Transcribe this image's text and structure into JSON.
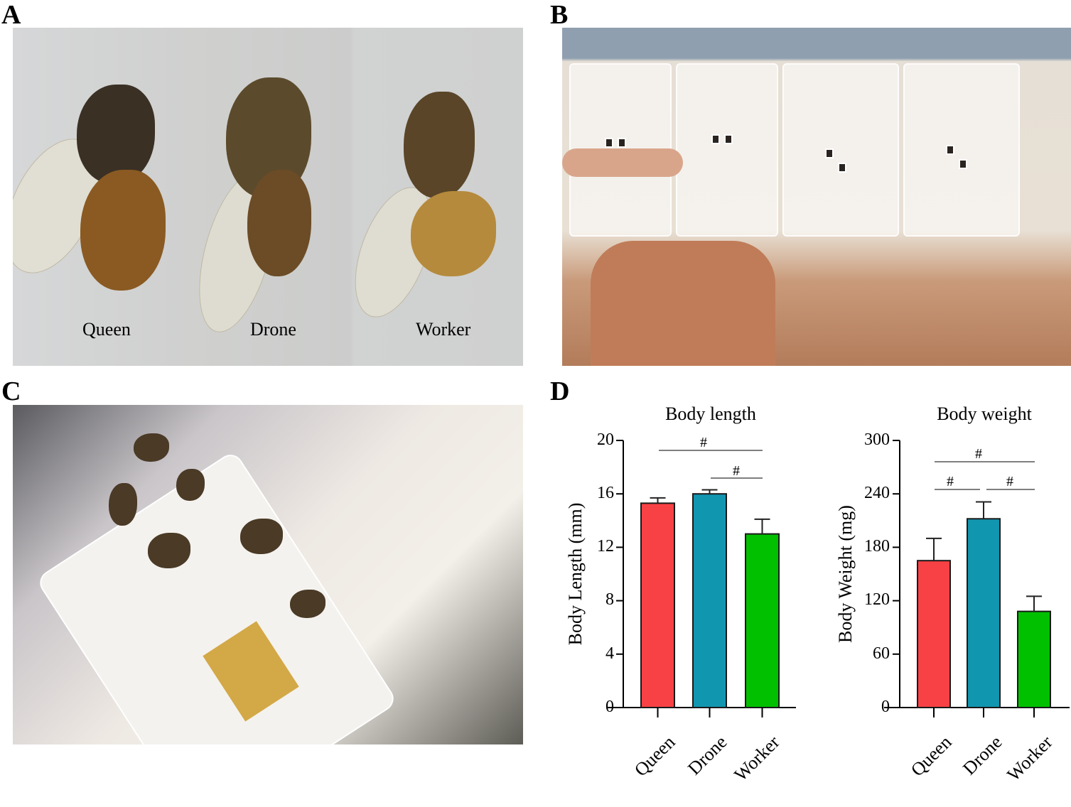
{
  "panels": {
    "A": {
      "label": "A",
      "captions": [
        "Queen",
        "Drone",
        "Worker"
      ]
    },
    "B": {
      "label": "B"
    },
    "C": {
      "label": "C"
    },
    "D": {
      "label": "D"
    }
  },
  "colors": {
    "queen": "#f84144",
    "drone": "#1196b0",
    "worker": "#00c000"
  },
  "chart_data": [
    {
      "type": "bar",
      "title": "Body length",
      "xlabel": "",
      "ylabel": "Body Length (mm)",
      "categories": [
        "Queen",
        "Drone",
        "Worker"
      ],
      "values": [
        15.3,
        16.0,
        13.0
      ],
      "error_upper": [
        15.7,
        16.3,
        14.1
      ],
      "ylim": [
        0,
        20
      ],
      "yticks": [
        0,
        4,
        8,
        12,
        16,
        20
      ],
      "grid": false,
      "legend": null,
      "significance": [
        {
          "pair": [
            "Queen",
            "Worker"
          ],
          "mark": "#"
        },
        {
          "pair": [
            "Drone",
            "Worker"
          ],
          "mark": "#"
        }
      ]
    },
    {
      "type": "bar",
      "title": "Body weight",
      "xlabel": "",
      "ylabel": "Body Weight (mg)",
      "categories": [
        "Queen",
        "Drone",
        "Worker"
      ],
      "values": [
        165,
        212,
        108
      ],
      "error_upper": [
        190,
        231,
        125
      ],
      "ylim": [
        0,
        300
      ],
      "yticks": [
        0,
        60,
        120,
        180,
        240,
        300
      ],
      "grid": false,
      "legend": null,
      "significance": [
        {
          "pair": [
            "Queen",
            "Worker"
          ],
          "mark": "#"
        },
        {
          "pair": [
            "Queen",
            "Drone"
          ],
          "mark": "#"
        },
        {
          "pair": [
            "Drone",
            "Worker"
          ],
          "mark": "#"
        }
      ]
    }
  ]
}
